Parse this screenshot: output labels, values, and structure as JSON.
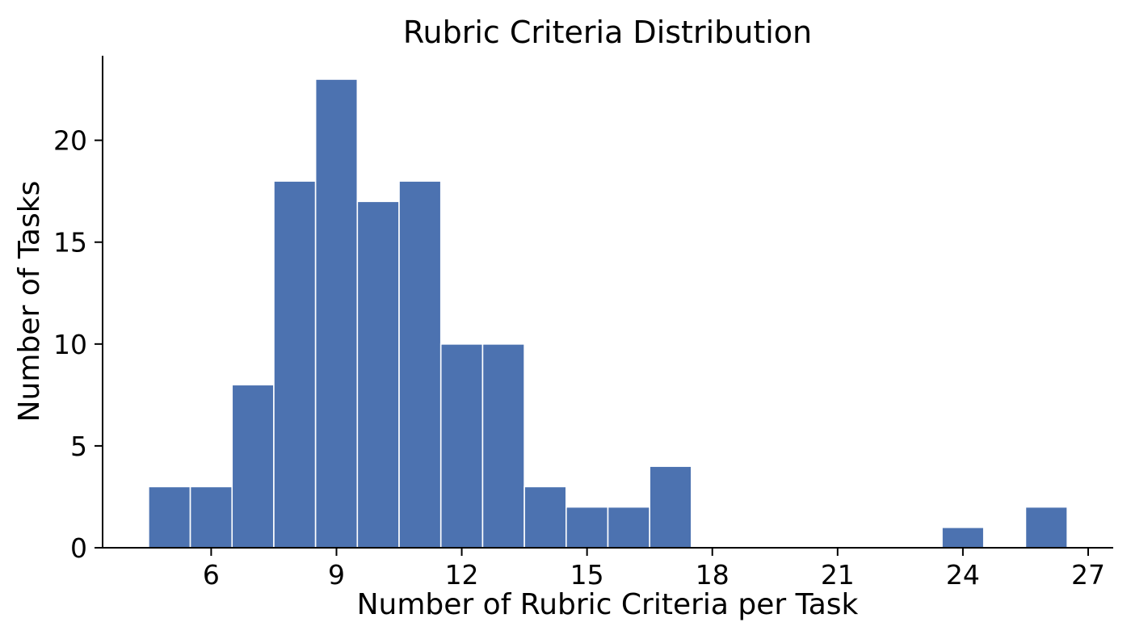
{
  "chart_data": {
    "type": "bar",
    "subtype": "histogram",
    "title": "Rubric Criteria Distribution",
    "xlabel": "Number of Rubric Criteria per Task",
    "ylabel": "Number of Tasks",
    "bin_width": 1,
    "bin_centers": [
      5,
      6,
      7,
      8,
      9,
      10,
      11,
      12,
      13,
      14,
      15,
      16,
      17,
      24,
      26
    ],
    "counts": [
      3,
      3,
      8,
      18,
      23,
      17,
      18,
      10,
      10,
      3,
      2,
      2,
      4,
      1,
      2
    ],
    "x_ticks": [
      6,
      9,
      12,
      15,
      18,
      21,
      24,
      27
    ],
    "y_ticks": [
      0,
      5,
      10,
      15,
      20
    ],
    "xlim": [
      3.4,
      27.6
    ],
    "ylim": [
      0,
      24.15
    ],
    "grid": false,
    "legend": null,
    "bar_color": "#4C72B0",
    "bar_edge_color": "#ffffff",
    "axis_color": "#000000",
    "text_color": "#000000"
  }
}
